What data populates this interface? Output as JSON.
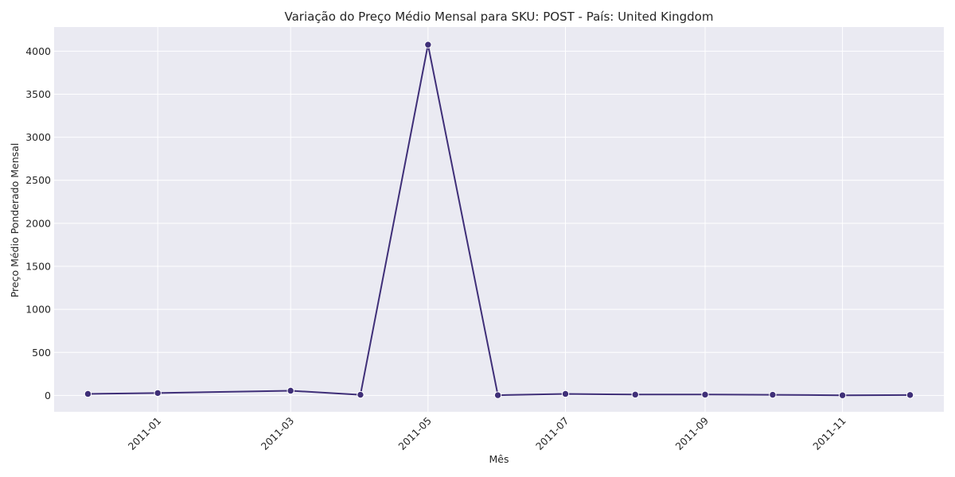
{
  "chart_data": {
    "type": "line",
    "title": "Variação do Preço Médio Mensal para SKU: POST - País: United Kingdom",
    "xlabel": "Mês",
    "ylabel": "Preço Médio Ponderado Mensal",
    "x_tick_labels": [
      "2011-01",
      "2011-03",
      "2011-05",
      "2011-07",
      "2011-09",
      "2011-11"
    ],
    "y_ticks": [
      0,
      500,
      1000,
      1500,
      2000,
      2500,
      3000,
      3500,
      4000
    ],
    "ylim": [
      -190,
      4280
    ],
    "xlim": [
      "2010-11-16",
      "2011-12-16"
    ],
    "grid": true,
    "series": [
      {
        "color": "#3f2f78",
        "points": [
          {
            "x": "2010-12-01",
            "y": 18
          },
          {
            "x": "2011-01-01",
            "y": 28
          },
          {
            "x": "2011-03-01",
            "y": 55
          },
          {
            "x": "2011-04-01",
            "y": 8
          },
          {
            "x": "2011-05-01",
            "y": 4075
          },
          {
            "x": "2011-06-01",
            "y": 3
          },
          {
            "x": "2011-07-01",
            "y": 18
          },
          {
            "x": "2011-08-01",
            "y": 10
          },
          {
            "x": "2011-09-01",
            "y": 10
          },
          {
            "x": "2011-10-01",
            "y": 8
          },
          {
            "x": "2011-11-01",
            "y": 2
          },
          {
            "x": "2011-12-01",
            "y": 5
          }
        ]
      }
    ]
  }
}
